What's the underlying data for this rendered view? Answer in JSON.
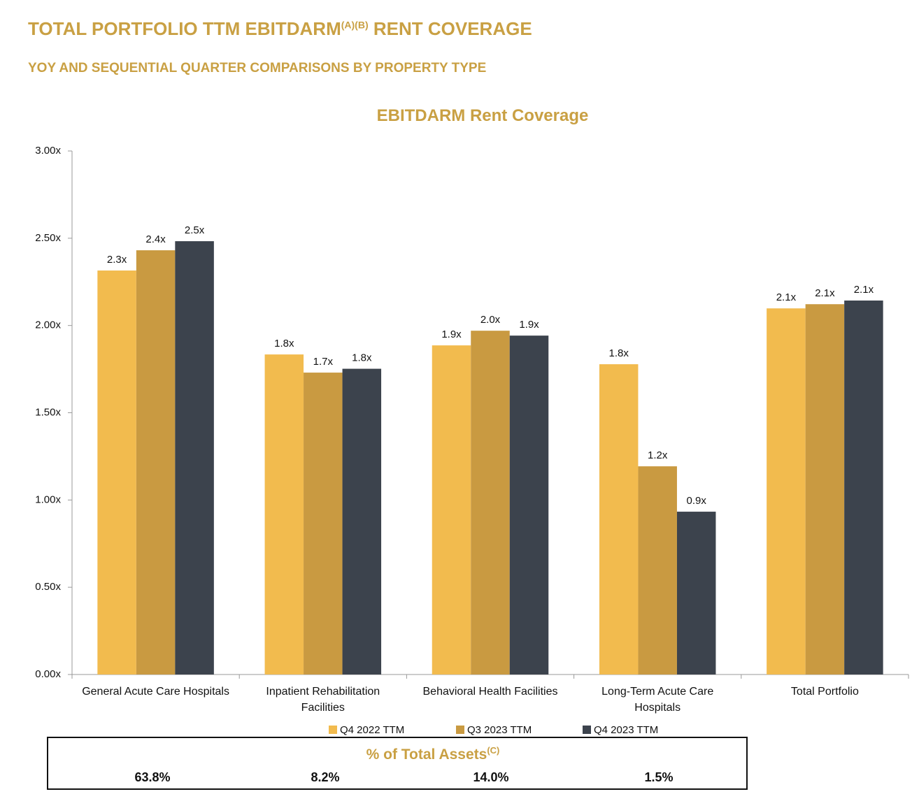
{
  "chart_data": {
    "type": "bar",
    "title": "TOTAL PORTFOLIO TTM EBITDARM",
    "title_superscript": "(A)(B)",
    "title_suffix": "RENT COVERAGE",
    "subtitle": "YOY AND SEQUENTIAL QUARTER COMPARISONS BY PROPERTY TYPE",
    "chart_title": "EBITDARM Rent Coverage",
    "categories": [
      "General Acute Care Hospitals",
      "Inpatient Rehabilitation Facilities",
      "Behavioral Health Facilities",
      "Long-Term Acute Care Hospitals",
      "Total Portfolio"
    ],
    "series": [
      {
        "name": "Q4 2022 TTM",
        "color": "#f2bb4e",
        "values": [
          2.315,
          1.834,
          1.886,
          1.778,
          2.098
        ],
        "value_labels": [
          "2.3x",
          "1.8x",
          "1.9x",
          "1.8x",
          "2.1x"
        ]
      },
      {
        "name": "Q3 2023 TTM",
        "color": "#c99a41",
        "values": [
          2.431,
          1.73,
          1.97,
          1.193,
          2.122
        ],
        "value_labels": [
          "2.4x",
          "1.7x",
          "2.0x",
          "1.2x",
          "2.1x"
        ]
      },
      {
        "name": "Q4 2023 TTM",
        "color": "#3c434d",
        "values": [
          2.483,
          1.752,
          1.942,
          0.933,
          2.143
        ],
        "value_labels": [
          "2.5x",
          "1.8x",
          "1.9x",
          "0.9x",
          "2.1x"
        ]
      }
    ],
    "ylim": [
      0,
      3
    ],
    "yticks": [
      {
        "value": 0,
        "label": "0.00x"
      },
      {
        "value": 0.5,
        "label": "0.50x"
      },
      {
        "value": 1,
        "label": "1.00x"
      },
      {
        "value": 1.5,
        "label": "1.50x"
      },
      {
        "value": 2,
        "label": "2.00x"
      },
      {
        "value": 2.5,
        "label": "2.50x"
      },
      {
        "value": 3,
        "label": "3.00x"
      }
    ],
    "legend": "bottom",
    "assets_table": {
      "title": "% of Total Assets",
      "title_superscript": "(C)",
      "values": [
        "63.8%",
        "8.2%",
        "14.0%",
        "1.5%"
      ]
    }
  }
}
